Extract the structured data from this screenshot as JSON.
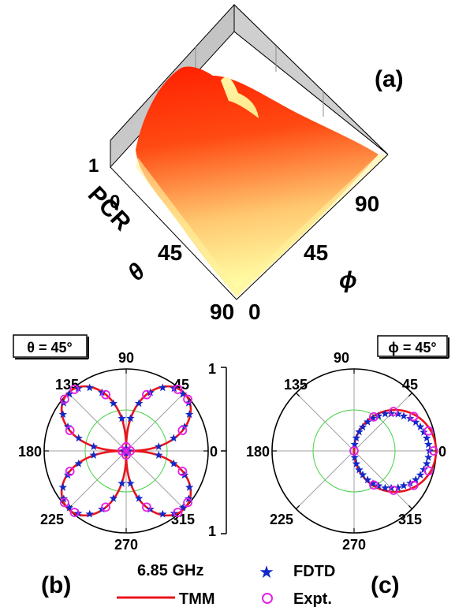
{
  "panels": {
    "a_label": "(a)",
    "b_label": "(b)",
    "c_label": "(c)"
  },
  "surface_plot": {
    "zlabel": "PCR",
    "xlabel": "θ",
    "ylabel": "ϕ",
    "z_ticks": [
      "1",
      "0"
    ],
    "theta_ticks": [
      "0",
      "45",
      "90"
    ],
    "phi_ticks": [
      "0",
      "45",
      "90"
    ]
  },
  "polar_b": {
    "title": "θ = 45°",
    "angle_ticks": [
      "90",
      "45",
      "0",
      "315",
      "270",
      "225",
      "180",
      "135"
    ]
  },
  "polar_c": {
    "title": "ϕ = 45°",
    "angle_ticks": [
      "90",
      "45",
      "0",
      "315",
      "270",
      "225",
      "180",
      "135"
    ]
  },
  "radial_scale": {
    "ticks": [
      "1",
      "0",
      "1"
    ]
  },
  "legend": {
    "frequency": "6.85 GHz",
    "tmm": "TMM",
    "fdtd": "FDTD",
    "expt": "Expt."
  },
  "colors": {
    "tmm": "#e8141c",
    "fdtd": "#1428c8",
    "expt": "#e61ee6",
    "grid_circle": "#46d246",
    "grid_spoke": "#a0a0a0",
    "surface_high": "#ff1400",
    "surface_low": "#ffff9a"
  },
  "chart_data": [
    {
      "type": "surface",
      "zlabel": "PCR",
      "xlabel": "θ",
      "ylabel": "ϕ",
      "x_ticks": [
        0,
        45,
        90
      ],
      "y_ticks": [
        0,
        45,
        90
      ],
      "z_ticks": [
        0,
        1
      ],
      "zlim": [
        0,
        1
      ]
    },
    {
      "type": "polar",
      "title": "θ = 45°",
      "angle_ticks": [
        0,
        45,
        90,
        135,
        180,
        225,
        270,
        315
      ],
      "rlim": [
        0,
        1
      ],
      "series": [
        {
          "name": "TMM",
          "style": "line",
          "model": "abs_sin_2phi_pow",
          "power": 0.7
        },
        {
          "name": "FDTD",
          "style": "star",
          "angles": [
            0,
            7.5,
            15,
            22.5,
            30,
            37.5,
            45,
            52.5,
            60,
            67.5,
            75,
            82.5,
            90,
            97.5,
            105,
            112.5,
            120,
            127.5,
            135,
            142.5,
            150,
            157.5,
            165,
            172.5,
            180,
            187.5,
            195,
            202.5,
            210,
            217.5,
            225,
            232.5,
            240,
            247.5,
            255,
            262.5,
            270,
            277.5,
            285,
            292.5,
            300,
            307.5,
            315,
            322.5,
            330,
            337.5,
            345,
            352.5
          ],
          "r": [
            0.03,
            0.4,
            0.6,
            0.77,
            0.89,
            0.96,
            0.98,
            0.96,
            0.89,
            0.77,
            0.6,
            0.4,
            0.03,
            0.4,
            0.6,
            0.77,
            0.89,
            0.96,
            0.98,
            0.96,
            0.89,
            0.77,
            0.6,
            0.4,
            0.03,
            0.4,
            0.6,
            0.77,
            0.89,
            0.96,
            0.98,
            0.96,
            0.89,
            0.77,
            0.6,
            0.4,
            0.03,
            0.4,
            0.6,
            0.77,
            0.89,
            0.96,
            0.98,
            0.96,
            0.89,
            0.77,
            0.6,
            0.4
          ]
        },
        {
          "name": "Expt.",
          "style": "circle",
          "angles": [
            0,
            20,
            40,
            50,
            70,
            90,
            110,
            130,
            140,
            160,
            180,
            200,
            220,
            230,
            250,
            270,
            290,
            310,
            320,
            340
          ],
          "r": [
            0.05,
            0.73,
            0.98,
            0.98,
            0.73,
            0.05,
            0.73,
            0.98,
            0.98,
            0.73,
            0.05,
            0.73,
            0.98,
            0.98,
            0.73,
            0.05,
            0.73,
            0.98,
            0.98,
            0.73
          ]
        }
      ]
    },
    {
      "type": "polar",
      "title": "ϕ = 45°",
      "angle_ticks": [
        0,
        45,
        90,
        135,
        180,
        225,
        270,
        315
      ],
      "rlim": [
        0,
        1
      ],
      "series": [
        {
          "name": "TMM",
          "style": "line",
          "model": "cos_phi",
          "max": 1.0
        },
        {
          "name": "FDTD",
          "style": "star",
          "angles": [
            -85,
            -80,
            -75,
            -70,
            -65,
            -60,
            -55,
            -50,
            -45,
            -40,
            -35,
            -30,
            -25,
            -20,
            -15,
            -10,
            -5,
            0,
            5,
            10,
            15,
            20,
            25,
            30,
            35,
            40,
            45,
            50,
            55,
            60,
            65,
            70,
            75,
            80,
            85
          ],
          "r": [
            0.08,
            0.16,
            0.24,
            0.31,
            0.39,
            0.46,
            0.52,
            0.59,
            0.64,
            0.7,
            0.74,
            0.79,
            0.83,
            0.86,
            0.88,
            0.9,
            0.91,
            0.92,
            0.91,
            0.9,
            0.88,
            0.86,
            0.83,
            0.79,
            0.74,
            0.7,
            0.64,
            0.59,
            0.52,
            0.46,
            0.39,
            0.31,
            0.24,
            0.16,
            0.08
          ]
        },
        {
          "name": "Expt.",
          "style": "circle",
          "angles": [
            -90,
            -60,
            -45,
            -30,
            -15,
            0,
            15,
            30,
            45,
            60
          ],
          "r": [
            0.0,
            0.48,
            0.68,
            0.84,
            0.94,
            0.97,
            0.94,
            0.84,
            0.68,
            0.48
          ]
        }
      ]
    }
  ]
}
